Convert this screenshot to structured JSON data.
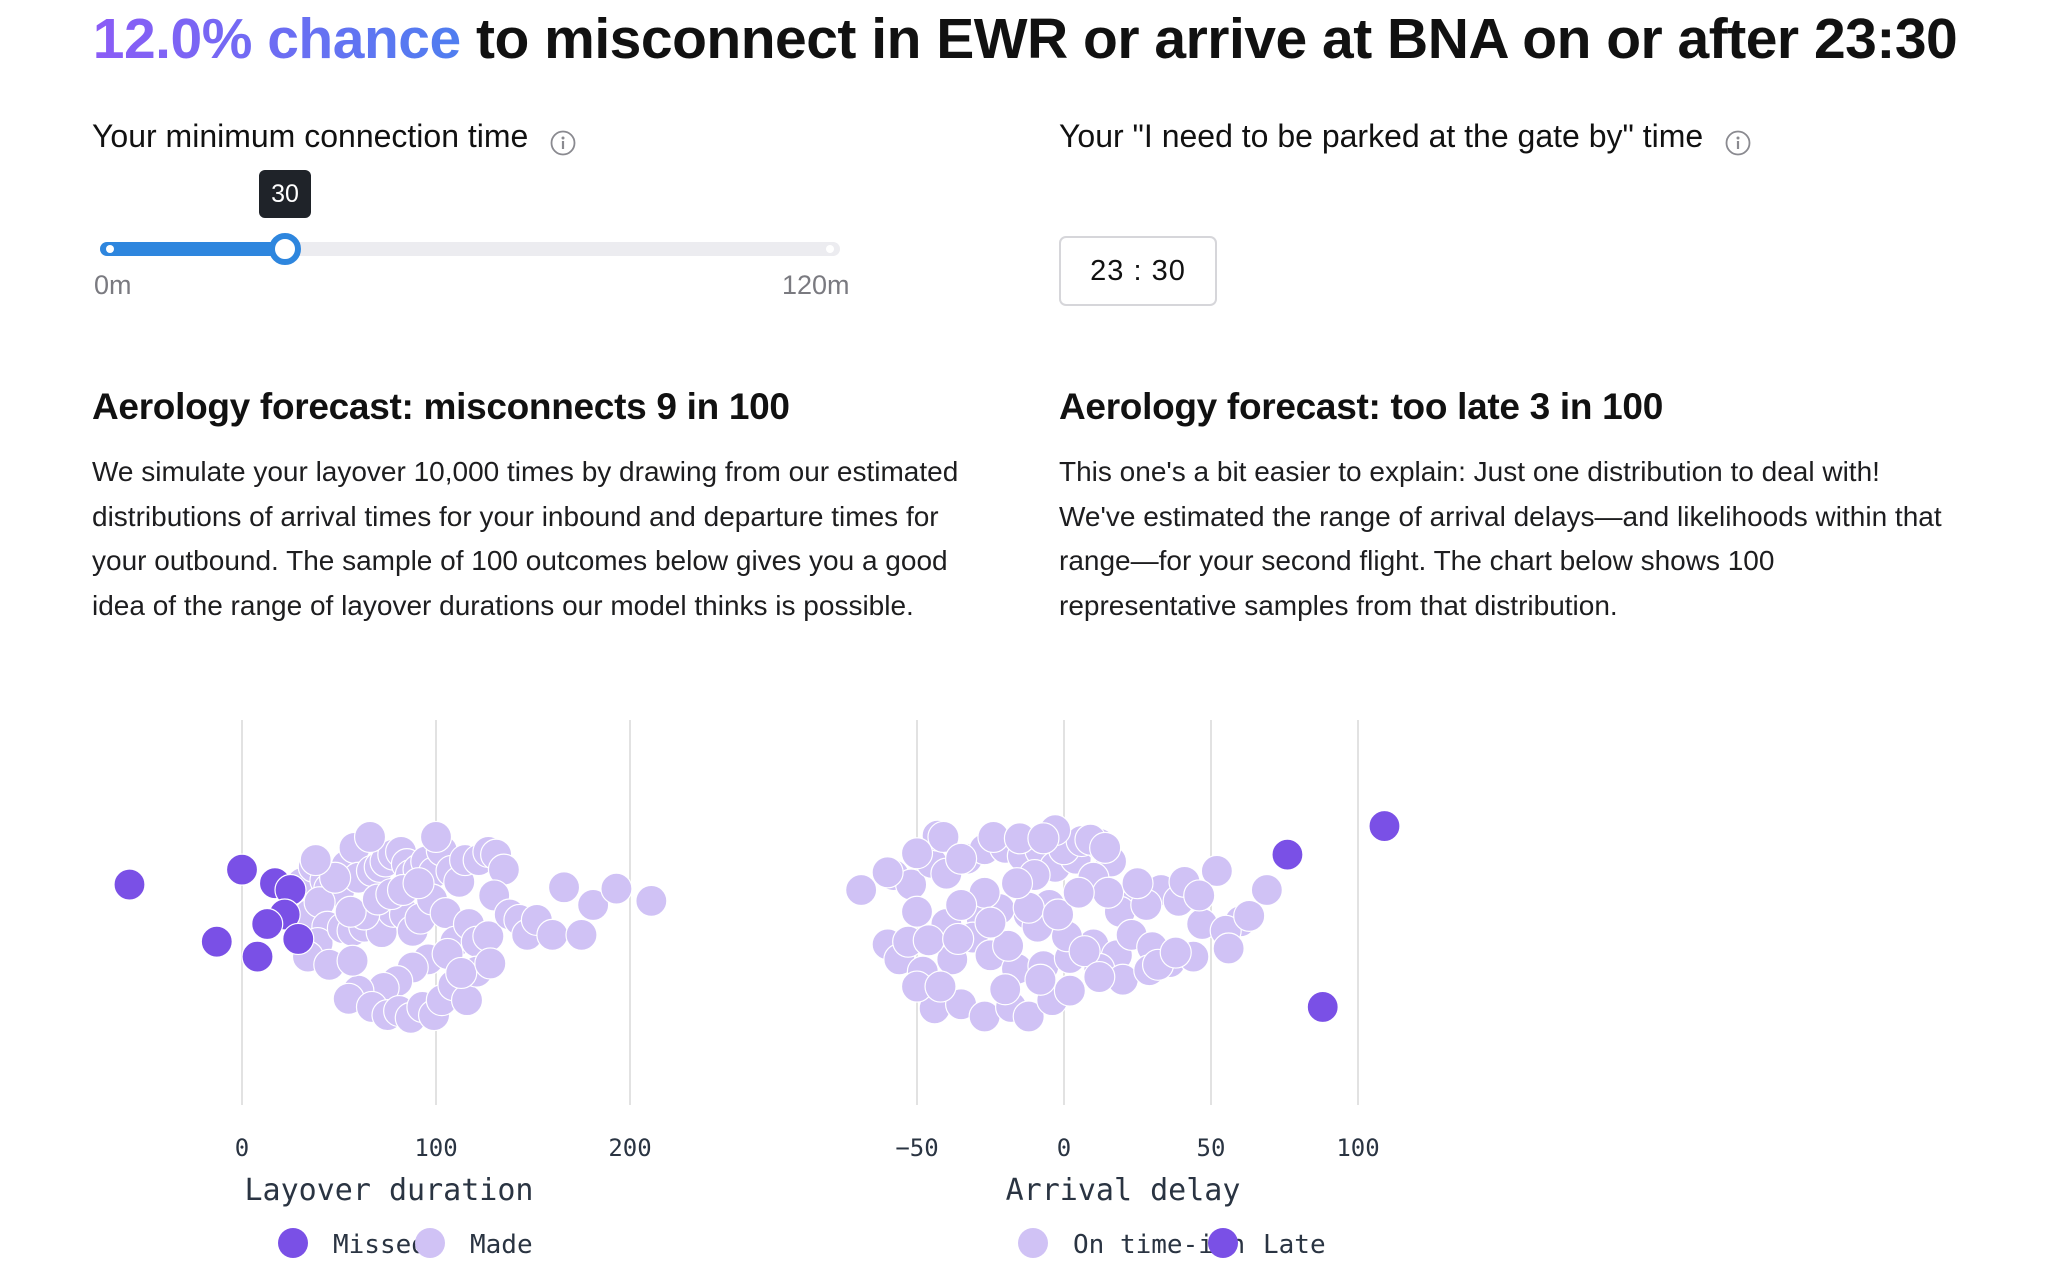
{
  "headline": {
    "chance_text": "12.0% chance",
    "rest_text": " to misconnect in EWR or arrive at BNA on or after 23:30"
  },
  "left": {
    "label": "Your minimum connection time",
    "info_icon": "info-icon",
    "slider": {
      "value": 30,
      "tooltip": "30",
      "min": 0,
      "max": 120,
      "min_label": "0m",
      "max_label": "120m"
    },
    "forecast_title": "Aerology forecast: misconnects 9 in 100",
    "forecast_body": "We simulate your layover 10,000 times by drawing from our estimated distributions of arrival times for your inbound and departure times for your outbound. The sample of 100 outcomes below gives you a good idea of the range of layover durations our model thinks is possible."
  },
  "right": {
    "label": "Your \"I need to be parked at the gate by\" time",
    "info_icon": "info-icon",
    "time_value": "23 : 30",
    "forecast_title": "Aerology forecast: too late 3 in 100",
    "forecast_body": "This one's a bit easier to explain: Just one distribution to deal with! We've estimated the range of arrival delays—and likelihoods within that range—for your second flight. The chart below shows 100 representative samples from that distribution."
  },
  "colors": {
    "dark_purple": "#7a50e6",
    "light_purple": "#d0c2f5",
    "slider_blue": "#2e86de",
    "gridline": "#e2e2e2"
  },
  "chart_data": [
    {
      "type": "scatter",
      "xlabel": "Layover duration",
      "x_range": [
        -60,
        215
      ],
      "ticks": [
        0,
        100,
        200
      ],
      "tick_labels": [
        "0",
        "100",
        "200"
      ],
      "grid": true,
      "legend": [
        {
          "name": "Missed",
          "color": "#7a50e6"
        },
        {
          "name": "Made",
          "color": "#d0c2f5"
        }
      ],
      "missed": [
        {
          "x": -58,
          "y": 0.04
        },
        {
          "x": 0,
          "y": 0.15
        },
        {
          "x": 17,
          "y": 0.05
        },
        {
          "x": 25,
          "y": 0.0
        },
        {
          "x": 22,
          "y": -0.18
        },
        {
          "x": 13,
          "y": -0.25
        },
        {
          "x": 29,
          "y": -0.36
        },
        {
          "x": -13,
          "y": -0.38
        },
        {
          "x": 8,
          "y": -0.49
        }
      ],
      "made": [
        {
          "x": 31,
          "y": 0.05
        },
        {
          "x": 37,
          "y": 0.17
        },
        {
          "x": 43,
          "y": 0.07
        },
        {
          "x": 45,
          "y": 0.01
        },
        {
          "x": 50,
          "y": -0.01
        },
        {
          "x": 54,
          "y": 0.18
        },
        {
          "x": 58,
          "y": 0.31
        },
        {
          "x": 60,
          "y": 0.09
        },
        {
          "x": 67,
          "y": 0.14
        },
        {
          "x": 71,
          "y": 0.17
        },
        {
          "x": 74,
          "y": 0.21
        },
        {
          "x": 78,
          "y": 0.26
        },
        {
          "x": 82,
          "y": 0.28
        },
        {
          "x": 85,
          "y": 0.19
        },
        {
          "x": 87,
          "y": 0.11
        },
        {
          "x": 91,
          "y": 0.15
        },
        {
          "x": 95,
          "y": 0.21
        },
        {
          "x": 99,
          "y": 0.13
        },
        {
          "x": 103,
          "y": 0.29
        },
        {
          "x": 100,
          "y": 0.39
        },
        {
          "x": 108,
          "y": 0.14
        },
        {
          "x": 112,
          "y": 0.06
        },
        {
          "x": 115,
          "y": 0.22
        },
        {
          "x": 122,
          "y": 0.22
        },
        {
          "x": 127,
          "y": 0.28
        },
        {
          "x": 131,
          "y": 0.26
        },
        {
          "x": 135,
          "y": 0.15
        },
        {
          "x": 35,
          "y": -0.18
        },
        {
          "x": 40,
          "y": -0.09
        },
        {
          "x": 44,
          "y": -0.27
        },
        {
          "x": 39,
          "y": -0.39
        },
        {
          "x": 34,
          "y": -0.49
        },
        {
          "x": 52,
          "y": -0.28
        },
        {
          "x": 57,
          "y": -0.3
        },
        {
          "x": 63,
          "y": -0.27
        },
        {
          "x": 70,
          "y": -0.21
        },
        {
          "x": 72,
          "y": -0.31
        },
        {
          "x": 78,
          "y": -0.16
        },
        {
          "x": 84,
          "y": -0.18
        },
        {
          "x": 88,
          "y": -0.3
        },
        {
          "x": 92,
          "y": -0.21
        },
        {
          "x": 98,
          "y": -0.07
        },
        {
          "x": 105,
          "y": -0.17
        },
        {
          "x": 110,
          "y": -0.38
        },
        {
          "x": 117,
          "y": -0.25
        },
        {
          "x": 121,
          "y": -0.38
        },
        {
          "x": 127,
          "y": -0.34
        },
        {
          "x": 130,
          "y": -0.04
        },
        {
          "x": 138,
          "y": -0.18
        },
        {
          "x": 143,
          "y": -0.22
        },
        {
          "x": 147,
          "y": -0.33
        },
        {
          "x": 152,
          "y": -0.22
        },
        {
          "x": 160,
          "y": -0.33
        },
        {
          "x": 166,
          "y": 0.02
        },
        {
          "x": 175,
          "y": -0.33
        },
        {
          "x": 181,
          "y": -0.11
        },
        {
          "x": 193,
          "y": 0.01
        },
        {
          "x": 211,
          "y": -0.08
        },
        {
          "x": 63,
          "y": -0.18
        },
        {
          "x": 56,
          "y": -0.16
        },
        {
          "x": 96,
          "y": -0.51
        },
        {
          "x": 88,
          "y": -0.57
        },
        {
          "x": 80,
          "y": -0.67
        },
        {
          "x": 73,
          "y": -0.72
        },
        {
          "x": 60,
          "y": -0.74
        },
        {
          "x": 55,
          "y": -0.8
        },
        {
          "x": 67,
          "y": -0.86
        },
        {
          "x": 75,
          "y": -0.92
        },
        {
          "x": 81,
          "y": -0.89
        },
        {
          "x": 87,
          "y": -0.94
        },
        {
          "x": 93,
          "y": -0.86
        },
        {
          "x": 99,
          "y": -0.92
        },
        {
          "x": 103,
          "y": -0.81
        },
        {
          "x": 109,
          "y": -0.7
        },
        {
          "x": 116,
          "y": -0.81
        },
        {
          "x": 121,
          "y": -0.6
        },
        {
          "x": 45,
          "y": -0.55
        },
        {
          "x": 57,
          "y": -0.52
        },
        {
          "x": 106,
          "y": -0.47
        },
        {
          "x": 113,
          "y": -0.61
        },
        {
          "x": 128,
          "y": -0.54
        },
        {
          "x": 70,
          "y": -0.07
        },
        {
          "x": 77,
          "y": -0.03
        },
        {
          "x": 83,
          "y": 0.0
        },
        {
          "x": 91,
          "y": 0.05
        },
        {
          "x": 48,
          "y": 0.09
        },
        {
          "x": 38,
          "y": 0.22
        },
        {
          "x": 66,
          "y": 0.39
        }
      ]
    },
    {
      "type": "scatter",
      "xlabel": "Arrival delay",
      "x_range": [
        -70,
        112
      ],
      "ticks": [
        -50,
        0,
        50,
        100
      ],
      "tick_labels": [
        "−50",
        "0",
        "50",
        "100"
      ],
      "grid": true,
      "legend": [
        {
          "name": "On time-ish",
          "color": "#d0c2f5"
        },
        {
          "name": "Late",
          "color": "#7a50e6"
        }
      ],
      "late": [
        {
          "x": 76,
          "y": 0.26
        },
        {
          "x": 109,
          "y": 0.47
        },
        {
          "x": 88,
          "y": -0.86
        }
      ],
      "on_time": [
        {
          "x": -69,
          "y": 0.0
        },
        {
          "x": -58,
          "y": 0.11
        },
        {
          "x": -52,
          "y": 0.04
        },
        {
          "x": -45,
          "y": 0.2
        },
        {
          "x": -43,
          "y": 0.4
        },
        {
          "x": -40,
          "y": 0.12
        },
        {
          "x": -33,
          "y": 0.23
        },
        {
          "x": -27,
          "y": 0.3
        },
        {
          "x": -20,
          "y": 0.31
        },
        {
          "x": -14,
          "y": 0.25
        },
        {
          "x": -8,
          "y": 0.29
        },
        {
          "x": -3,
          "y": 0.17
        },
        {
          "x": 4,
          "y": 0.23
        },
        {
          "x": 12,
          "y": 0.34
        },
        {
          "x": 16,
          "y": 0.21
        },
        {
          "x": 10,
          "y": 0.09
        },
        {
          "x": 25,
          "y": -0.07
        },
        {
          "x": 33,
          "y": 0.0
        },
        {
          "x": 39,
          "y": -0.08
        },
        {
          "x": 52,
          "y": 0.14
        },
        {
          "x": 60,
          "y": -0.23
        },
        {
          "x": 69,
          "y": 0.0
        },
        {
          "x": 47,
          "y": -0.25
        },
        {
          "x": 19,
          "y": -0.16
        },
        {
          "x": -5,
          "y": -0.11
        },
        {
          "x": -12,
          "y": -0.18
        },
        {
          "x": -22,
          "y": -0.14
        },
        {
          "x": -28,
          "y": -0.21
        },
        {
          "x": -40,
          "y": -0.25
        },
        {
          "x": -50,
          "y": -0.16
        },
        {
          "x": -60,
          "y": -0.4
        },
        {
          "x": -56,
          "y": -0.51
        },
        {
          "x": -48,
          "y": -0.6
        },
        {
          "x": -38,
          "y": -0.51
        },
        {
          "x": -31,
          "y": -0.35
        },
        {
          "x": -25,
          "y": -0.48
        },
        {
          "x": -16,
          "y": -0.58
        },
        {
          "x": -7,
          "y": -0.56
        },
        {
          "x": 2,
          "y": -0.5
        },
        {
          "x": 10,
          "y": -0.4
        },
        {
          "x": 18,
          "y": -0.48
        },
        {
          "x": 23,
          "y": -0.33
        },
        {
          "x": 30,
          "y": -0.42
        },
        {
          "x": 36,
          "y": -0.53
        },
        {
          "x": 44,
          "y": -0.49
        },
        {
          "x": 55,
          "y": -0.3
        },
        {
          "x": 63,
          "y": -0.19
        },
        {
          "x": -44,
          "y": -0.87
        },
        {
          "x": -35,
          "y": -0.84
        },
        {
          "x": -27,
          "y": -0.93
        },
        {
          "x": -18,
          "y": -0.86
        },
        {
          "x": -12,
          "y": -0.93
        },
        {
          "x": -4,
          "y": -0.81
        },
        {
          "x": 2,
          "y": -0.74
        },
        {
          "x": 12,
          "y": -0.58
        },
        {
          "x": 20,
          "y": -0.66
        },
        {
          "x": 29,
          "y": -0.59
        },
        {
          "x": -50,
          "y": -0.71
        },
        {
          "x": -42,
          "y": -0.71
        },
        {
          "x": -20,
          "y": -0.73
        },
        {
          "x": -8,
          "y": -0.66
        },
        {
          "x": -53,
          "y": -0.38
        },
        {
          "x": -46,
          "y": -0.37
        },
        {
          "x": -36,
          "y": -0.36
        },
        {
          "x": -19,
          "y": -0.41
        },
        {
          "x": -9,
          "y": -0.27
        },
        {
          "x": 1,
          "y": -0.34
        },
        {
          "x": 7,
          "y": -0.45
        },
        {
          "x": 12,
          "y": -0.64
        },
        {
          "x": 32,
          "y": -0.55
        },
        {
          "x": 38,
          "y": -0.46
        },
        {
          "x": 56,
          "y": -0.43
        },
        {
          "x": 41,
          "y": 0.06
        },
        {
          "x": 46,
          "y": -0.04
        },
        {
          "x": -41,
          "y": 0.39
        },
        {
          "x": -35,
          "y": 0.23
        },
        {
          "x": -24,
          "y": 0.39
        },
        {
          "x": -15,
          "y": 0.38
        },
        {
          "x": -10,
          "y": 0.11
        },
        {
          "x": 0,
          "y": 0.3
        },
        {
          "x": 6,
          "y": 0.36
        },
        {
          "x": -3,
          "y": 0.44
        },
        {
          "x": -7,
          "y": 0.38
        },
        {
          "x": 9,
          "y": 0.37
        },
        {
          "x": 14,
          "y": 0.31
        },
        {
          "x": -50,
          "y": 0.27
        },
        {
          "x": -27,
          "y": -0.02
        },
        {
          "x": -12,
          "y": -0.13
        },
        {
          "x": -2,
          "y": -0.18
        },
        {
          "x": -35,
          "y": -0.11
        },
        {
          "x": -16,
          "y": 0.05
        },
        {
          "x": 28,
          "y": -0.11
        },
        {
          "x": 15,
          "y": -0.02
        },
        {
          "x": -25,
          "y": -0.24
        },
        {
          "x": -60,
          "y": 0.13
        },
        {
          "x": 5,
          "y": -0.02
        },
        {
          "x": 25,
          "y": 0.05
        }
      ]
    }
  ]
}
